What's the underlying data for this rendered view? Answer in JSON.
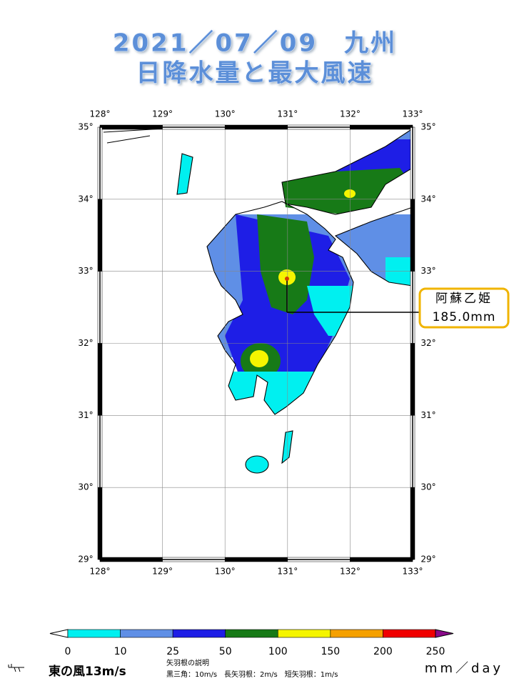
{
  "title": [
    "2021／07／09　九州",
    "日降水量と最大風速"
  ],
  "map": {
    "longitudes": [
      "128°",
      "129°",
      "130°",
      "131°",
      "132°",
      "133°"
    ],
    "latitudes": [
      "35°",
      "34°",
      "33°",
      "32°",
      "31°",
      "30°",
      "29°"
    ]
  },
  "station": {
    "name": "阿蘇乙姫",
    "amount": "185.0mm"
  },
  "legend": {
    "ticks": [
      0,
      10,
      25,
      50,
      100,
      150,
      200,
      250
    ],
    "colors": [
      "#00f0f0",
      "#5f8fe6",
      "#1e1ee6",
      "#177a17",
      "#f5f500",
      "#f5a000",
      "#f00000"
    ],
    "over_color": "#8a0a8a",
    "unit": "mm／day",
    "wind_example": "東の風13m/s",
    "wind_note_title": "矢羽根の説明",
    "wind_note": "黒三角：10m/s　長矢羽根：2m/s　短矢羽根：1m/s"
  }
}
